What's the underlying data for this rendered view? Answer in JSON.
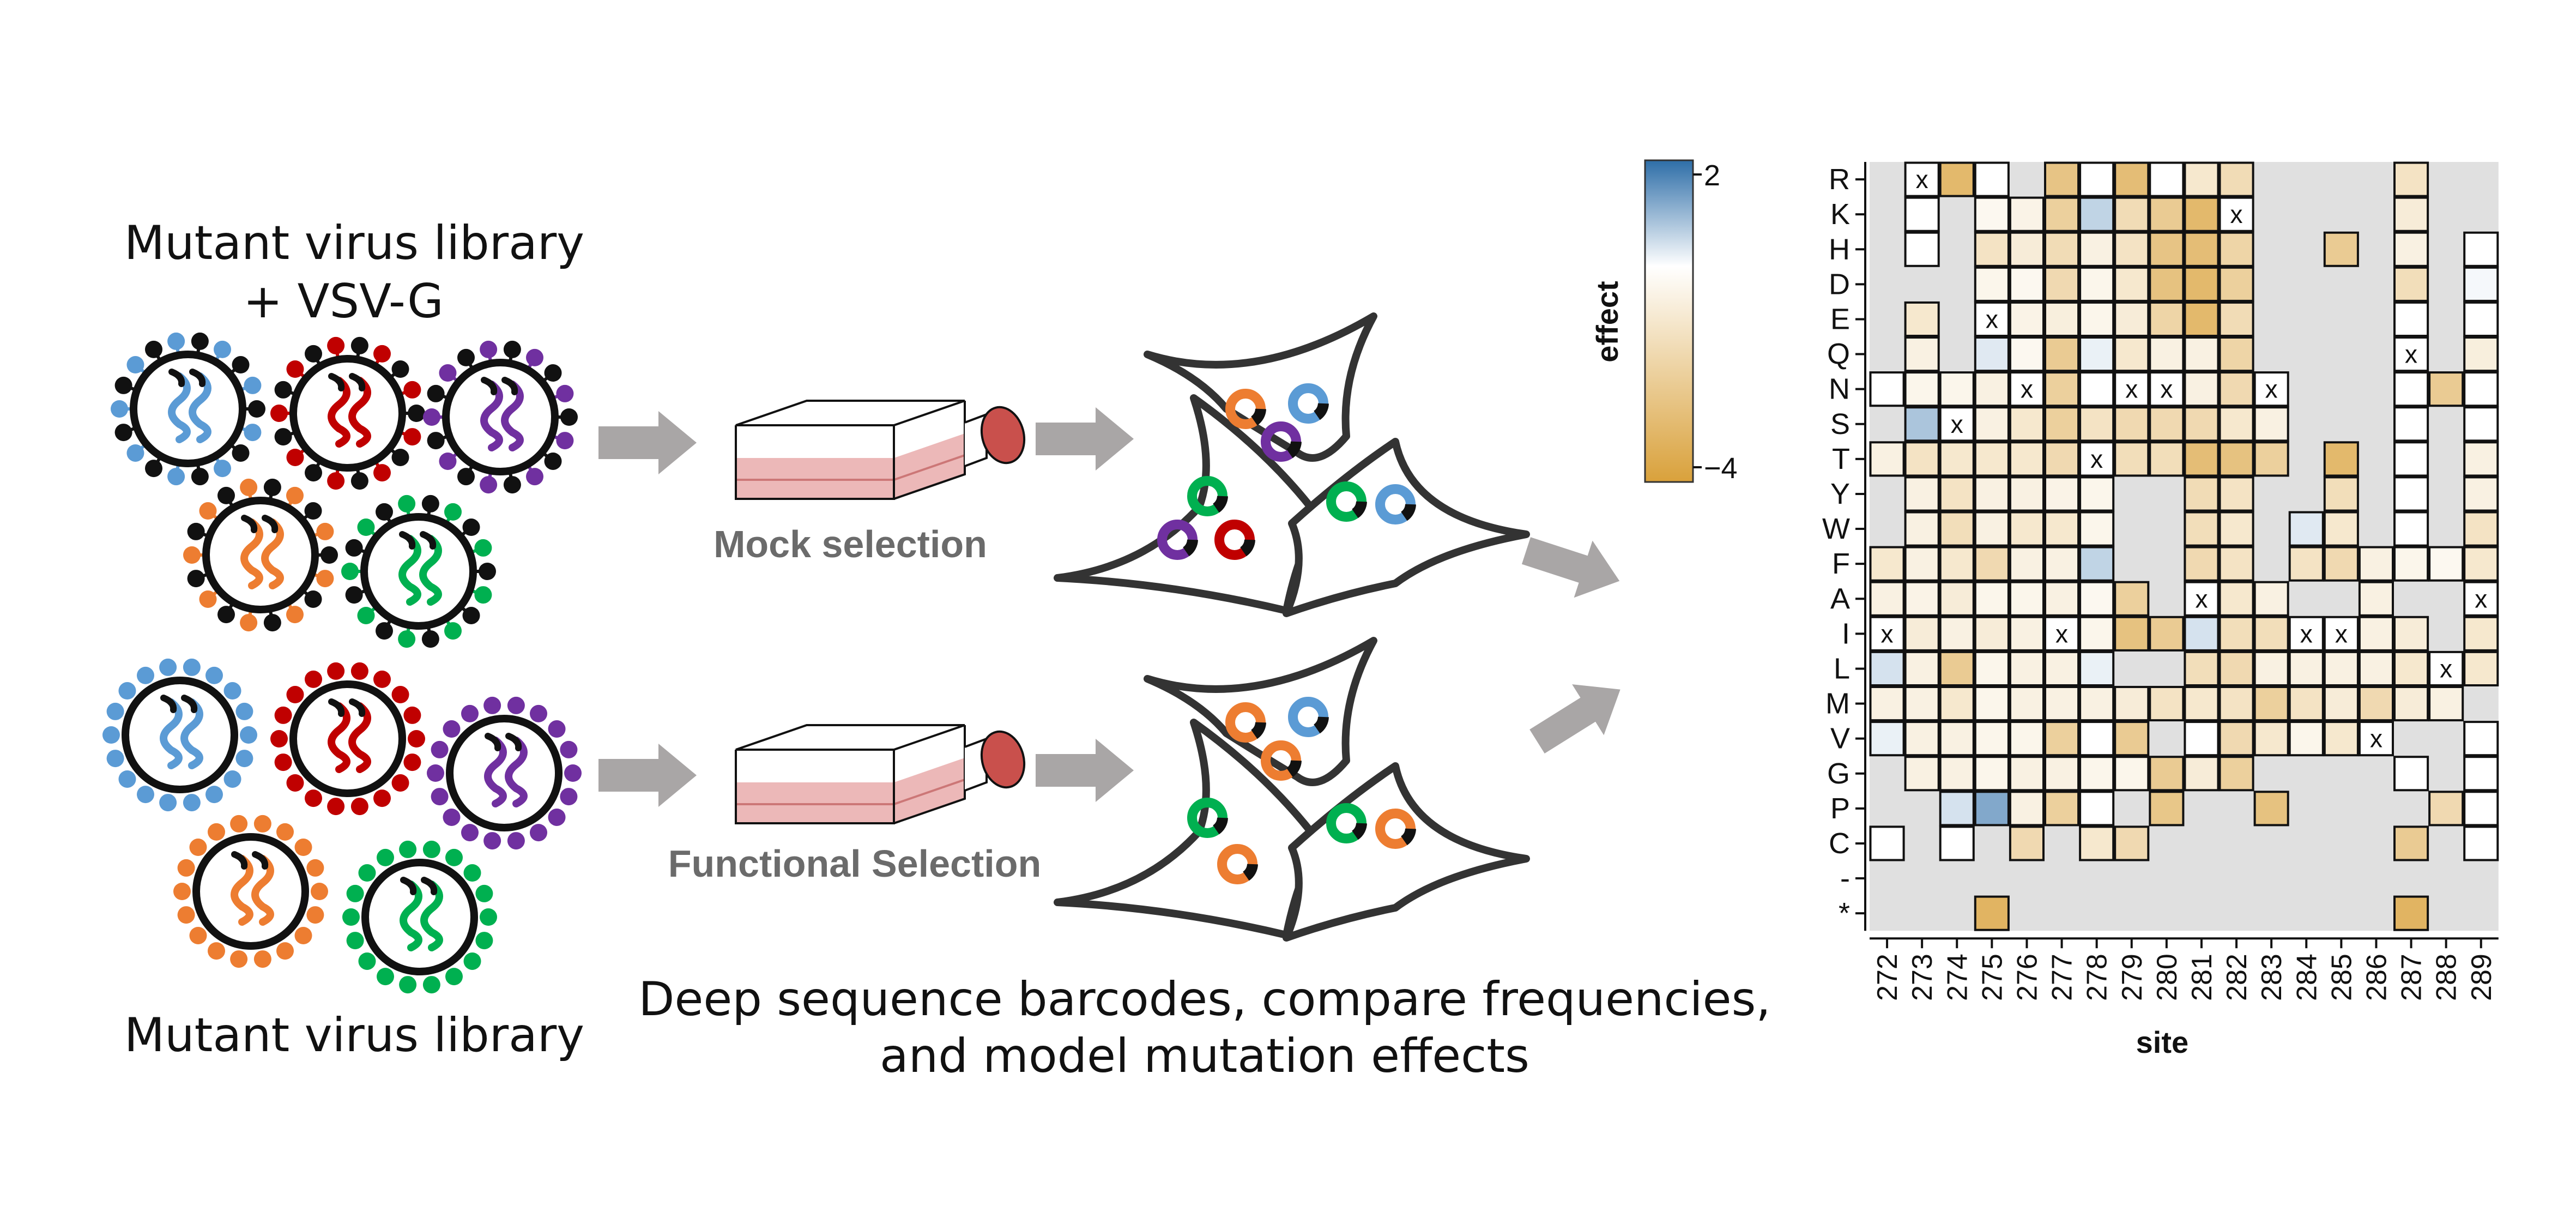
{
  "labels": {
    "top_library_line1": "Mutant virus library",
    "top_library_line2": "+ VSV-G",
    "bottom_library": "Mutant virus library",
    "mock_selection": "Mock selection",
    "functional_selection": "Functional Selection",
    "bottom_caption_line1": "Deep sequence barcodes, compare frequencies,",
    "bottom_caption_line2": "and model mutation effects"
  },
  "colors": {
    "blue": "#5b9bd5",
    "red": "#c00000",
    "purple": "#7030a0",
    "orange": "#ed7d31",
    "green": "#00b050",
    "arrow": "#a9a6a6",
    "flask_fill": "#e6a0a0",
    "cap": "#c9504c",
    "heatmap_bg": "#e0e0e0"
  },
  "chart_data": {
    "type": "heatmap",
    "xlabel": "site",
    "ylabel": "",
    "legend_title": "effect",
    "legend_ticks": [
      "2",
      "−4"
    ],
    "color_scale": {
      "min": -4,
      "mid": 0,
      "max": 2,
      "low_color": "#d9a13b",
      "mid_color": "#ffffff",
      "high_color": "#2e6ea8"
    },
    "sites": [
      "272",
      "273",
      "274",
      "275",
      "276",
      "277",
      "278",
      "279",
      "280",
      "281",
      "282",
      "283",
      "284",
      "285",
      "286",
      "287",
      "288",
      "289"
    ],
    "amino_acids": [
      "R",
      "K",
      "H",
      "D",
      "E",
      "Q",
      "N",
      "S",
      "T",
      "Y",
      "W",
      "F",
      "A",
      "I",
      "L",
      "M",
      "V",
      "G",
      "P",
      "C",
      "-",
      "*"
    ],
    "wildtype_marker": "x",
    "cells_note": "each entry: [amino_acid, site, effect]; 'x' entries mark wildtype",
    "cells": [
      [
        "R",
        "273",
        "x"
      ],
      [
        "R",
        "274",
        -3.0
      ],
      [
        "R",
        "275",
        0.0
      ],
      [
        "R",
        "277",
        -2.5
      ],
      [
        "R",
        "278",
        0.0
      ],
      [
        "R",
        "279",
        -2.8
      ],
      [
        "R",
        "280",
        0.0
      ],
      [
        "R",
        "281",
        -1.0
      ],
      [
        "R",
        "282",
        -1.5
      ],
      [
        "R",
        "287",
        -1.2
      ],
      [
        "K",
        "273",
        0.0
      ],
      [
        "K",
        "275",
        -0.3
      ],
      [
        "K",
        "276",
        -0.5
      ],
      [
        "K",
        "277",
        -2.0
      ],
      [
        "K",
        "278",
        0.6
      ],
      [
        "K",
        "279",
        -1.5
      ],
      [
        "K",
        "280",
        -2.2
      ],
      [
        "K",
        "281",
        -3.0
      ],
      [
        "K",
        "282",
        "x"
      ],
      [
        "K",
        "287",
        -0.8
      ],
      [
        "H",
        "273",
        0.0
      ],
      [
        "H",
        "275",
        -1.2
      ],
      [
        "H",
        "276",
        -0.8
      ],
      [
        "H",
        "277",
        -1.5
      ],
      [
        "H",
        "278",
        -0.6
      ],
      [
        "H",
        "279",
        -1.2
      ],
      [
        "H",
        "280",
        -2.5
      ],
      [
        "H",
        "281",
        -2.8
      ],
      [
        "H",
        "282",
        -1.8
      ],
      [
        "H",
        "285",
        -2.2
      ],
      [
        "H",
        "287",
        -0.6
      ],
      [
        "H",
        "289",
        0.0
      ],
      [
        "D",
        "275",
        -0.4
      ],
      [
        "D",
        "276",
        -0.3
      ],
      [
        "D",
        "277",
        -1.6
      ],
      [
        "D",
        "278",
        -0.4
      ],
      [
        "D",
        "279",
        -1.0
      ],
      [
        "D",
        "280",
        -2.6
      ],
      [
        "D",
        "281",
        -3.0
      ],
      [
        "D",
        "282",
        -2.0
      ],
      [
        "D",
        "287",
        -1.4
      ],
      [
        "D",
        "289",
        0.1
      ],
      [
        "E",
        "273",
        -1.0
      ],
      [
        "E",
        "275",
        "x"
      ],
      [
        "E",
        "276",
        -0.5
      ],
      [
        "E",
        "277",
        -0.7
      ],
      [
        "E",
        "278",
        -0.4
      ],
      [
        "E",
        "279",
        -0.8
      ],
      [
        "E",
        "280",
        -1.8
      ],
      [
        "E",
        "281",
        -3.0
      ],
      [
        "E",
        "282",
        -1.5
      ],
      [
        "E",
        "287",
        0.0
      ],
      [
        "E",
        "289",
        0.0
      ],
      [
        "Q",
        "273",
        -0.6
      ],
      [
        "Q",
        "275",
        0.3
      ],
      [
        "Q",
        "276",
        -0.3
      ],
      [
        "Q",
        "277",
        -2.2
      ],
      [
        "Q",
        "278",
        0.2
      ],
      [
        "Q",
        "279",
        -1.0
      ],
      [
        "Q",
        "280",
        -0.6
      ],
      [
        "Q",
        "281",
        -0.6
      ],
      [
        "Q",
        "282",
        -1.8
      ],
      [
        "Q",
        "287",
        "x"
      ],
      [
        "Q",
        "289",
        -0.7
      ],
      [
        "N",
        "272",
        0.0
      ],
      [
        "N",
        "273",
        -0.4
      ],
      [
        "N",
        "274",
        -0.4
      ],
      [
        "N",
        "275",
        -0.6
      ],
      [
        "N",
        "276",
        "x"
      ],
      [
        "N",
        "277",
        -2.0
      ],
      [
        "N",
        "278",
        0.0
      ],
      [
        "N",
        "279",
        "x"
      ],
      [
        "N",
        "280",
        "x"
      ],
      [
        "N",
        "281",
        -0.6
      ],
      [
        "N",
        "282",
        -1.6
      ],
      [
        "N",
        "283",
        "x"
      ],
      [
        "N",
        "287",
        0.0
      ],
      [
        "N",
        "288",
        -2.2
      ],
      [
        "N",
        "289",
        0.0
      ],
      [
        "S",
        "273",
        0.8
      ],
      [
        "S",
        "274",
        "x"
      ],
      [
        "S",
        "275",
        -0.6
      ],
      [
        "S",
        "276",
        -1.0
      ],
      [
        "S",
        "277",
        -2.0
      ],
      [
        "S",
        "278",
        -1.2
      ],
      [
        "S",
        "279",
        -1.6
      ],
      [
        "S",
        "280",
        -1.6
      ],
      [
        "S",
        "281",
        -1.6
      ],
      [
        "S",
        "282",
        -1.0
      ],
      [
        "S",
        "283",
        -0.6
      ],
      [
        "S",
        "287",
        0.0
      ],
      [
        "S",
        "289",
        0.0
      ],
      [
        "T",
        "272",
        -0.6
      ],
      [
        "T",
        "273",
        -1.2
      ],
      [
        "T",
        "274",
        -1.0
      ],
      [
        "T",
        "275",
        -1.0
      ],
      [
        "T",
        "276",
        -1.0
      ],
      [
        "T",
        "277",
        -1.6
      ],
      [
        "T",
        "278",
        "x"
      ],
      [
        "T",
        "279",
        -1.4
      ],
      [
        "T",
        "280",
        -1.4
      ],
      [
        "T",
        "281",
        -2.8
      ],
      [
        "T",
        "282",
        -2.6
      ],
      [
        "T",
        "283",
        -2.0
      ],
      [
        "T",
        "285",
        -3.0
      ],
      [
        "T",
        "287",
        0.0
      ],
      [
        "T",
        "289",
        -0.6
      ],
      [
        "Y",
        "273",
        -0.6
      ],
      [
        "Y",
        "274",
        -1.2
      ],
      [
        "Y",
        "275",
        -0.6
      ],
      [
        "Y",
        "276",
        -0.6
      ],
      [
        "Y",
        "277",
        -0.5
      ],
      [
        "Y",
        "278",
        -0.4
      ],
      [
        "Y",
        "281",
        -1.5
      ],
      [
        "Y",
        "282",
        -1.2
      ],
      [
        "Y",
        "285",
        -1.4
      ],
      [
        "Y",
        "287",
        0.0
      ],
      [
        "Y",
        "289",
        -0.6
      ],
      [
        "W",
        "273",
        -0.6
      ],
      [
        "W",
        "274",
        -1.4
      ],
      [
        "W",
        "275",
        -0.6
      ],
      [
        "W",
        "276",
        -1.0
      ],
      [
        "W",
        "277",
        -1.0
      ],
      [
        "W",
        "278",
        -0.4
      ],
      [
        "W",
        "281",
        -1.4
      ],
      [
        "W",
        "282",
        -1.0
      ],
      [
        "W",
        "284",
        0.3
      ],
      [
        "W",
        "285",
        -1.0
      ],
      [
        "W",
        "287",
        0.0
      ],
      [
        "W",
        "289",
        -1.2
      ],
      [
        "F",
        "272",
        -1.0
      ],
      [
        "F",
        "273",
        -0.6
      ],
      [
        "F",
        "274",
        -1.0
      ],
      [
        "F",
        "275",
        -1.6
      ],
      [
        "F",
        "276",
        -0.6
      ],
      [
        "F",
        "277",
        -0.6
      ],
      [
        "F",
        "278",
        0.6
      ],
      [
        "F",
        "281",
        -1.6
      ],
      [
        "F",
        "282",
        -1.2
      ],
      [
        "F",
        "284",
        -1.2
      ],
      [
        "F",
        "285",
        -1.6
      ],
      [
        "F",
        "286",
        -0.6
      ],
      [
        "F",
        "287",
        -0.4
      ],
      [
        "F",
        "288",
        -0.3
      ],
      [
        "F",
        "289",
        -1.0
      ],
      [
        "A",
        "272",
        -0.6
      ],
      [
        "A",
        "273",
        -0.5
      ],
      [
        "A",
        "274",
        -0.8
      ],
      [
        "A",
        "275",
        -0.4
      ],
      [
        "A",
        "276",
        -0.4
      ],
      [
        "A",
        "277",
        -0.6
      ],
      [
        "A",
        "278",
        -0.3
      ],
      [
        "A",
        "279",
        -2.0
      ],
      [
        "A",
        "281",
        "x"
      ],
      [
        "A",
        "282",
        -1.0
      ],
      [
        "A",
        "283",
        -0.6
      ],
      [
        "A",
        "286",
        -0.6
      ],
      [
        "A",
        "289",
        "x"
      ],
      [
        "I",
        "272",
        "x"
      ],
      [
        "I",
        "273",
        -0.8
      ],
      [
        "I",
        "274",
        -0.6
      ],
      [
        "I",
        "275",
        -0.8
      ],
      [
        "I",
        "276",
        -0.6
      ],
      [
        "I",
        "277",
        "x"
      ],
      [
        "I",
        "278",
        -0.4
      ],
      [
        "I",
        "279",
        -2.6
      ],
      [
        "I",
        "280",
        -2.2
      ],
      [
        "I",
        "281",
        0.4
      ],
      [
        "I",
        "282",
        -1.4
      ],
      [
        "I",
        "283",
        -1.4
      ],
      [
        "I",
        "284",
        "x"
      ],
      [
        "I",
        "285",
        "x"
      ],
      [
        "I",
        "286",
        -0.6
      ],
      [
        "I",
        "287",
        -0.8
      ],
      [
        "I",
        "289",
        -1.0
      ],
      [
        "L",
        "272",
        0.4
      ],
      [
        "L",
        "273",
        -0.6
      ],
      [
        "L",
        "274",
        -2.2
      ],
      [
        "L",
        "275",
        -0.4
      ],
      [
        "L",
        "276",
        -0.6
      ],
      [
        "L",
        "277",
        -0.6
      ],
      [
        "L",
        "278",
        0.2
      ],
      [
        "L",
        "281",
        -1.4
      ],
      [
        "L",
        "282",
        -1.6
      ],
      [
        "L",
        "283",
        -0.6
      ],
      [
        "L",
        "284",
        -0.6
      ],
      [
        "L",
        "285",
        -0.6
      ],
      [
        "L",
        "286",
        -0.6
      ],
      [
        "L",
        "287",
        -1.0
      ],
      [
        "L",
        "288",
        "x"
      ],
      [
        "L",
        "289",
        -1.0
      ],
      [
        "M",
        "272",
        -0.6
      ],
      [
        "M",
        "273",
        -0.6
      ],
      [
        "M",
        "274",
        -1.0
      ],
      [
        "M",
        "275",
        -0.4
      ],
      [
        "M",
        "276",
        -0.6
      ],
      [
        "M",
        "277",
        -0.6
      ],
      [
        "M",
        "278",
        -0.6
      ],
      [
        "M",
        "279",
        -0.8
      ],
      [
        "M",
        "280",
        -1.2
      ],
      [
        "M",
        "281",
        -1.0
      ],
      [
        "M",
        "282",
        -1.2
      ],
      [
        "M",
        "283",
        -2.0
      ],
      [
        "M",
        "284",
        -1.2
      ],
      [
        "M",
        "285",
        -0.8
      ],
      [
        "M",
        "286",
        -1.6
      ],
      [
        "M",
        "287",
        -0.8
      ],
      [
        "M",
        "288",
        -0.6
      ],
      [
        "V",
        "272",
        0.2
      ],
      [
        "V",
        "273",
        -0.6
      ],
      [
        "V",
        "274",
        -0.6
      ],
      [
        "V",
        "275",
        -0.4
      ],
      [
        "V",
        "276",
        -0.4
      ],
      [
        "V",
        "277",
        -2.0
      ],
      [
        "V",
        "278",
        0.0
      ],
      [
        "V",
        "279",
        -2.2
      ],
      [
        "V",
        "281",
        0.0
      ],
      [
        "V",
        "282",
        -1.6
      ],
      [
        "V",
        "283",
        -1.0
      ],
      [
        "V",
        "284",
        -0.4
      ],
      [
        "V",
        "285",
        -1.0
      ],
      [
        "V",
        "286",
        "x"
      ],
      [
        "V",
        "289",
        0.0
      ],
      [
        "G",
        "273",
        -0.6
      ],
      [
        "G",
        "274",
        -0.6
      ],
      [
        "G",
        "275",
        -0.4
      ],
      [
        "G",
        "276",
        -0.6
      ],
      [
        "G",
        "277",
        -0.6
      ],
      [
        "G",
        "278",
        -0.4
      ],
      [
        "G",
        "279",
        -0.4
      ],
      [
        "G",
        "280",
        -2.2
      ],
      [
        "G",
        "281",
        -0.8
      ],
      [
        "G",
        "282",
        -2.0
      ],
      [
        "G",
        "287",
        0.0
      ],
      [
        "G",
        "289",
        0.0
      ],
      [
        "P",
        "274",
        0.4
      ],
      [
        "P",
        "275",
        1.2
      ],
      [
        "P",
        "276",
        -0.6
      ],
      [
        "P",
        "277",
        -2.0
      ],
      [
        "P",
        "278",
        0.0
      ],
      [
        "P",
        "280",
        -2.4
      ],
      [
        "P",
        "283",
        -2.6
      ],
      [
        "P",
        "288",
        -1.6
      ],
      [
        "P",
        "289",
        0.0
      ],
      [
        "C",
        "272",
        0.0
      ],
      [
        "C",
        "274",
        0.0
      ],
      [
        "C",
        "276",
        -1.6
      ],
      [
        "C",
        "278",
        -1.0
      ],
      [
        "C",
        "279",
        -1.6
      ],
      [
        "C",
        "287",
        -2.2
      ],
      [
        "C",
        "289",
        0.0
      ],
      [
        "*",
        "275",
        -3.2
      ],
      [
        "*",
        "287",
        -3.2
      ]
    ]
  }
}
